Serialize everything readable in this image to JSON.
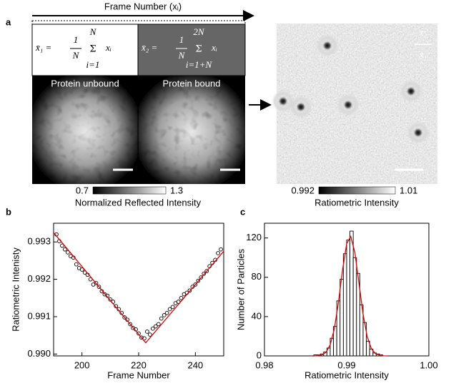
{
  "panel_labels": [
    "a",
    "b",
    "c"
  ],
  "panel_a": {
    "frame_axis": "Frame Number (xᵢ)",
    "formula1": {
      "lhs": "x̄₁ =",
      "num": "1",
      "den": "N",
      "upper": "N",
      "lower": "i=1",
      "term": "xᵢ"
    },
    "formula2": {
      "lhs": "x̄₂ =",
      "num": "1",
      "den": "N",
      "upper": "2N",
      "lower": "i=1+N",
      "term": "xᵢ"
    },
    "unbound_label": "Protein unbound",
    "bound_label": "Protein bound",
    "ratio": {
      "num": "x̄₂",
      "den": "x̄₁"
    },
    "colorbar1": {
      "min": "0.7",
      "max": "1.3",
      "label": "Normalized Reflected Intensity"
    },
    "colorbar2": {
      "min": "0.992",
      "max": "1.01",
      "label": "Ratiometric Intensity"
    }
  },
  "chart_data": [
    {
      "type": "scatter",
      "xlabel": "Frame Number",
      "ylabel": "Ratiometric Intenisty",
      "xlim": [
        190,
        250
      ],
      "xticks": [
        200,
        220,
        240
      ],
      "ylim": [
        0.98995,
        0.9935
      ],
      "yticks": [
        {
          "value": 0.99,
          "label": "0.990"
        },
        0.991,
        0.992,
        0.993
      ],
      "series": [
        {
          "color": "#000000",
          "style": "markers",
          "x": [
            191,
            192,
            193,
            194,
            195,
            196,
            197,
            198,
            199,
            200,
            201,
            202,
            203,
            204,
            205,
            206,
            207,
            208,
            209,
            210,
            211,
            212,
            213,
            214,
            215,
            216,
            217,
            218,
            219,
            220,
            221,
            222,
            223,
            224,
            225,
            226,
            227,
            228,
            229,
            230,
            231,
            232,
            233,
            234,
            235,
            236,
            237,
            238,
            239,
            240,
            241,
            242,
            243,
            244,
            245,
            246,
            247,
            248,
            249
          ],
          "values": [
            0.9932,
            0.99302,
            0.9929,
            0.9928,
            0.99272,
            0.99262,
            0.99258,
            0.9924,
            0.9923,
            0.99226,
            0.99218,
            0.99212,
            0.992,
            0.99186,
            0.9919,
            0.9918,
            0.99168,
            0.9916,
            0.99156,
            0.99146,
            0.9914,
            0.99128,
            0.9912,
            0.9911,
            0.99098,
            0.99092,
            0.9908,
            0.9907,
            0.99066,
            0.99055,
            0.99044,
            0.99042,
            0.9906,
            0.99052,
            0.99068,
            0.99074,
            0.9908,
            0.99095,
            0.99104,
            0.9911,
            0.9912,
            0.99126,
            0.99136,
            0.9914,
            0.9915,
            0.9916,
            0.99164,
            0.9917,
            0.9918,
            0.99186,
            0.99196,
            0.99205,
            0.99215,
            0.99222,
            0.99235,
            0.99244,
            0.99252,
            0.9927,
            0.9928
          ]
        },
        {
          "color": "#e00000",
          "style": "line",
          "x": [
            190,
            222.5,
            250
          ],
          "values": [
            0.99325,
            0.9903,
            0.99275
          ]
        }
      ]
    },
    {
      "type": "histogram",
      "xlabel": "Ratiometric Intensity",
      "ylabel": "Number of Particles",
      "xlim": [
        0.98,
        1.0
      ],
      "xticks": [
        0.98,
        0.99,
        {
          "value": 1,
          "label": "1.00"
        }
      ],
      "ylim": [
        0,
        135
      ],
      "yticks": [
        0,
        40,
        80,
        120
      ],
      "color": "#000000",
      "bins": [
        0.9852,
        0.9856,
        0.986,
        0.9864,
        0.9868,
        0.9872,
        0.9876,
        0.988,
        0.9884,
        0.9888,
        0.9892,
        0.9896,
        0.99,
        0.9904,
        0.9908,
        0.9912,
        0.9916,
        0.992,
        0.9924,
        0.9928,
        0.9932,
        0.9936,
        0.994,
        0.9944,
        0.9948,
        0.9952
      ],
      "values": [
        0,
        0,
        1,
        1,
        2,
        4,
        8,
        18,
        30,
        56,
        78,
        104,
        118,
        127,
        100,
        84,
        52,
        34,
        15,
        7,
        3,
        2,
        1,
        0,
        0
      ],
      "fit": {
        "color": "#e00000",
        "x": [
          0.986,
          0.9865,
          0.987,
          0.9875,
          0.988,
          0.9885,
          0.989,
          0.9895,
          0.99,
          0.9905,
          0.991,
          0.9915,
          0.992,
          0.9925,
          0.993,
          0.9935,
          0.994,
          0.9945,
          0.995
        ],
        "values": [
          0,
          0.2,
          1,
          3.8,
          11.3,
          27.4,
          54.4,
          87.3,
          114.1,
          121.5,
          105.2,
          74,
          42.3,
          19.7,
          7.5,
          2.3,
          0.6,
          0.1,
          0
        ]
      }
    }
  ]
}
